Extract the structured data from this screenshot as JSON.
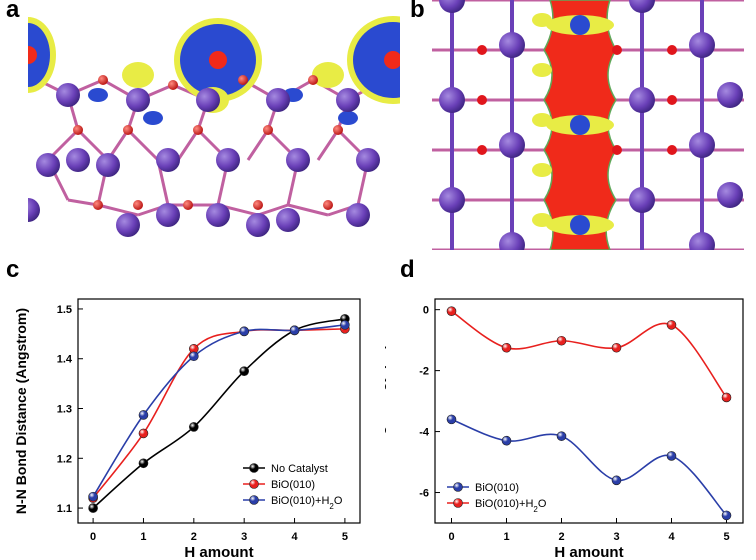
{
  "panel_labels": {
    "a": "a",
    "b": "b",
    "c": "c",
    "d": "d"
  },
  "colors": {
    "bi_atom": "#6a40b8",
    "o_atom": "#e0161c",
    "charge_blue": "#2a4ad0",
    "charge_yellow": "#e8ec45",
    "charge_red": "#f02a1a",
    "series_black": "#000000",
    "series_red": "#e8201e",
    "series_blue": "#2a3ea8"
  },
  "chart_data": [
    {
      "type": "line",
      "panel": "c",
      "xlabel": "H amount",
      "ylabel": "N-N Bond Distance (Angstrom)",
      "x": [
        0,
        1,
        2,
        3,
        4,
        5
      ],
      "xticks": [
        "0",
        "1",
        "2",
        "3",
        "4",
        "5"
      ],
      "yticks": [
        "1.1",
        "1.2",
        "1.3",
        "1.4",
        "1.5"
      ],
      "xlim": [
        -0.3,
        5.3
      ],
      "ylim": [
        1.07,
        1.52
      ],
      "legend_position": "bottom-right",
      "series": [
        {
          "name": "No Catalyst",
          "color": "#000000",
          "values": [
            1.1,
            1.19,
            1.263,
            1.375,
            1.457,
            1.48
          ]
        },
        {
          "name": "BiO(010)",
          "color": "#e8201e",
          "values": [
            1.12,
            1.25,
            1.42,
            1.455,
            1.457,
            1.46
          ]
        },
        {
          "name": "BiO(010)+H",
          "name_sub": "2",
          "name_tail": "O",
          "color": "#2a3ea8",
          "values": [
            1.123,
            1.287,
            1.405,
            1.455,
            1.457,
            1.468
          ]
        }
      ]
    },
    {
      "type": "line",
      "panel": "d",
      "xlabel": "H amount",
      "ylabel": "Binding Energy (eV)",
      "x": [
        0,
        1,
        2,
        3,
        4,
        5
      ],
      "xticks": [
        "0",
        "1",
        "2",
        "3",
        "4",
        "5"
      ],
      "yticks": [
        "0",
        "-2",
        "-4",
        "-6"
      ],
      "xlim": [
        -0.3,
        5.3
      ],
      "ylim": [
        -7.0,
        0.35
      ],
      "legend_position": "bottom-left",
      "series": [
        {
          "name": "BiO(010)",
          "color": "#2a3ea8",
          "values": [
            -3.6,
            -4.3,
            -4.15,
            -5.6,
            -4.8,
            -6.75
          ]
        },
        {
          "name": "BiO(010)+H",
          "name_sub": "2",
          "name_tail": "O",
          "color": "#e8201e",
          "values": [
            -0.05,
            -1.25,
            -1.02,
            -1.25,
            -0.5,
            -2.88
          ]
        }
      ]
    }
  ]
}
